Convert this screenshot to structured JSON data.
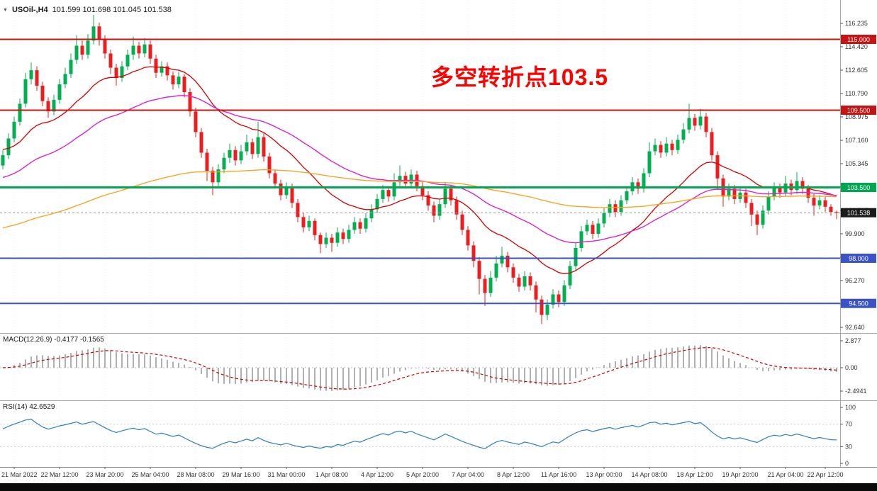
{
  "header": {
    "collapse_icon": "▼",
    "symbol_label": "USOil-,H4",
    "ohlc_text": "101.599 101.698 101.045 101.538"
  },
  "annotation": {
    "text": "多空转折点103.5",
    "color": "#fe0000"
  },
  "indicators": {
    "macd": {
      "label": "MACD(12,26,9) -0.4177 -0.1565",
      "params": [
        12,
        26,
        9
      ],
      "current_values": [
        -0.4177,
        -0.1565
      ],
      "axis_labels": [
        "2.877",
        "0.00",
        "-2.4941"
      ],
      "axis_values": [
        2.877,
        0,
        -2.4941
      ]
    },
    "rsi": {
      "label": "RSI(14) 42.6529",
      "period": 14,
      "current_value": 42.6529,
      "axis_labels": [
        "100",
        "70",
        "30",
        "0"
      ],
      "axis_values": [
        100,
        70,
        30,
        0
      ],
      "levels": [
        70,
        30
      ]
    }
  },
  "chart_data": {
    "type": "candlestick",
    "symbol": "USOil-",
    "timeframe": "H4",
    "title": "多空转折点103.5",
    "ohlc_current": {
      "open": 101.599,
      "high": 101.698,
      "low": 101.045,
      "close": 101.538
    },
    "ylim": [
      92.2,
      118.05
    ],
    "macd_ylim": [
      -3.48,
      3.71
    ],
    "y_axis_labels": [
      "116.235",
      "114.420",
      "112.605",
      "110.790",
      "108.975",
      "107.160",
      "105.345",
      "103.530",
      "101.715",
      "99.900",
      "98.085",
      "96.270",
      "94.455",
      "92.640"
    ],
    "time_labels": [
      "21 Mar 2022",
      "22 Mar 12:00",
      "23 Mar 20:00",
      "25 Mar 04:00",
      "28 Mar 08:00",
      "29 Mar 16:00",
      "31 Mar 00:00",
      "1 Apr 08:00",
      "4 Apr 12:00",
      "5 Apr 20:00",
      "7 Apr 04:00",
      "8 Apr 12:00",
      "11 Apr 16:00",
      "13 Apr 00:00",
      "14 Apr 08:00",
      "18 Apr 12:00",
      "19 Apr 20:00",
      "21 Apr 04:00",
      "22 Apr 12:00"
    ],
    "time_label_indices": [
      2,
      10,
      18,
      26,
      34,
      42,
      50,
      58,
      66,
      74,
      82,
      90,
      98,
      106,
      114,
      122,
      130,
      138,
      145
    ],
    "h_lines": [
      {
        "price": 115.0,
        "label": "115.000",
        "color": "#c41414",
        "width": 2
      },
      {
        "price": 109.5,
        "label": "109.500",
        "color": "#c41414",
        "width": 2
      },
      {
        "price": 103.5,
        "label": "103.500",
        "color": "#00a651",
        "width": 3
      },
      {
        "price": 98.0,
        "label": "98.000",
        "color": "#3a52c4",
        "width": 2
      },
      {
        "price": 94.5,
        "label": "94.500",
        "color": "#3a52c4",
        "width": 2
      }
    ],
    "current_price": {
      "value": 101.538,
      "label": "101.538",
      "box_color": "#1a1a1a"
    },
    "moving_averages": [
      {
        "name": "fast-ma",
        "period": 20,
        "seed": 106.5,
        "color": "#d40000",
        "width": 1.3
      },
      {
        "name": "mid-ma",
        "period": 45,
        "seed": 104.2,
        "color": "#dd22cc",
        "width": 1.4
      },
      {
        "name": "slow-ma",
        "period": 150,
        "seed": 100.3,
        "color": "#f5a623",
        "width": 1.4
      }
    ],
    "colors": {
      "bull": "#00b050",
      "bear": "#ee1c1c",
      "background": "#ffffff",
      "grid": "#efefef",
      "macd_histogram": "#a8a8a8",
      "macd_signal": "#cc0000",
      "rsi_line": "#2e7fbe"
    },
    "candle_format": [
      "open",
      "high",
      "low",
      "close"
    ],
    "candles": [
      [
        105.2,
        106.4,
        104.9,
        106.0
      ],
      [
        106.0,
        107.7,
        105.7,
        107.3
      ],
      [
        107.3,
        109.0,
        107.0,
        108.6
      ],
      [
        108.6,
        110.4,
        108.3,
        110.0
      ],
      [
        110.0,
        112.4,
        109.7,
        111.9
      ],
      [
        111.9,
        113.2,
        111.5,
        112.6
      ],
      [
        112.6,
        112.9,
        111.0,
        111.4
      ],
      [
        111.4,
        111.7,
        109.8,
        110.2
      ],
      [
        110.2,
        110.5,
        108.9,
        109.4
      ],
      [
        109.4,
        110.7,
        109.1,
        110.3
      ],
      [
        110.3,
        111.9,
        110.0,
        111.5
      ],
      [
        111.5,
        112.8,
        111.2,
        112.3
      ],
      [
        112.3,
        113.9,
        112.0,
        113.4
      ],
      [
        113.4,
        115.3,
        113.1,
        114.5
      ],
      [
        114.5,
        114.9,
        113.4,
        113.8
      ],
      [
        113.8,
        115.4,
        113.5,
        114.9
      ],
      [
        114.9,
        116.9,
        114.6,
        116.0
      ],
      [
        116.0,
        116.3,
        114.5,
        115.0
      ],
      [
        115.0,
        115.3,
        113.5,
        113.9
      ],
      [
        113.9,
        114.2,
        112.3,
        112.8
      ],
      [
        112.8,
        113.1,
        111.4,
        112.0
      ],
      [
        112.0,
        113.3,
        111.7,
        112.9
      ],
      [
        112.9,
        114.2,
        112.6,
        113.8
      ],
      [
        113.8,
        115.2,
        113.4,
        114.5
      ],
      [
        114.5,
        114.8,
        113.5,
        113.9
      ],
      [
        113.9,
        115.1,
        113.6,
        114.6
      ],
      [
        114.6,
        114.9,
        113.1,
        113.5
      ],
      [
        113.5,
        113.8,
        112.0,
        112.4
      ],
      [
        112.4,
        113.3,
        112.1,
        112.9
      ],
      [
        112.9,
        113.2,
        111.8,
        112.2
      ],
      [
        112.2,
        112.5,
        111.1,
        111.5
      ],
      [
        111.5,
        112.5,
        111.2,
        112.1
      ],
      [
        112.1,
        112.3,
        110.5,
        110.9
      ],
      [
        110.9,
        111.2,
        109.0,
        109.4
      ],
      [
        109.4,
        109.7,
        107.4,
        107.8
      ],
      [
        107.8,
        108.1,
        105.8,
        106.2
      ],
      [
        106.2,
        106.5,
        104.0,
        104.8
      ],
      [
        104.8,
        105.1,
        102.9,
        103.9
      ],
      [
        103.9,
        105.3,
        103.6,
        104.9
      ],
      [
        104.9,
        106.2,
        104.6,
        105.8
      ],
      [
        105.8,
        106.9,
        105.4,
        106.4
      ],
      [
        106.4,
        106.7,
        105.2,
        105.6
      ],
      [
        105.6,
        106.8,
        105.3,
        106.3
      ],
      [
        106.3,
        107.6,
        106.0,
        107.0
      ],
      [
        107.0,
        107.3,
        105.7,
        106.1
      ],
      [
        106.1,
        108.6,
        105.8,
        107.4
      ],
      [
        107.4,
        107.7,
        105.5,
        105.9
      ],
      [
        105.9,
        106.2,
        104.2,
        104.6
      ],
      [
        104.6,
        104.9,
        103.4,
        103.8
      ],
      [
        103.8,
        104.1,
        102.5,
        102.9
      ],
      [
        102.9,
        103.9,
        102.6,
        103.5
      ],
      [
        103.5,
        103.8,
        101.9,
        102.3
      ],
      [
        102.3,
        102.6,
        100.8,
        101.2
      ],
      [
        101.2,
        101.5,
        100.0,
        100.4
      ],
      [
        100.4,
        101.3,
        100.1,
        100.9
      ],
      [
        100.9,
        101.1,
        99.4,
        99.8
      ],
      [
        99.8,
        100.0,
        98.4,
        99.1
      ],
      [
        99.1,
        100.0,
        98.8,
        99.6
      ],
      [
        99.6,
        99.9,
        98.5,
        99.2
      ],
      [
        99.2,
        100.4,
        98.9,
        100.0
      ],
      [
        100.0,
        100.3,
        99.1,
        99.5
      ],
      [
        99.5,
        100.6,
        99.2,
        100.2
      ],
      [
        100.2,
        101.2,
        99.9,
        100.8
      ],
      [
        100.8,
        101.1,
        99.9,
        100.3
      ],
      [
        100.3,
        101.5,
        100.0,
        101.1
      ],
      [
        101.1,
        102.2,
        100.8,
        101.8
      ],
      [
        101.8,
        103.0,
        101.5,
        102.6
      ],
      [
        102.6,
        103.7,
        102.3,
        103.3
      ],
      [
        103.3,
        103.6,
        102.4,
        102.8
      ],
      [
        102.8,
        104.6,
        102.5,
        103.9
      ],
      [
        103.9,
        105.2,
        103.6,
        104.4
      ],
      [
        104.4,
        104.7,
        103.4,
        103.8
      ],
      [
        103.8,
        104.9,
        103.5,
        104.5
      ],
      [
        104.5,
        104.8,
        103.2,
        103.6
      ],
      [
        103.6,
        103.9,
        102.5,
        102.9
      ],
      [
        102.9,
        103.2,
        101.7,
        102.1
      ],
      [
        102.1,
        102.4,
        100.8,
        101.3
      ],
      [
        101.3,
        102.6,
        101.0,
        102.2
      ],
      [
        102.2,
        103.9,
        101.9,
        103.4
      ],
      [
        103.4,
        103.7,
        102.1,
        102.5
      ],
      [
        102.5,
        102.8,
        101.0,
        101.4
      ],
      [
        101.4,
        101.7,
        99.8,
        100.2
      ],
      [
        100.2,
        100.5,
        98.6,
        99.0
      ],
      [
        99.0,
        99.3,
        97.3,
        97.8
      ],
      [
        97.8,
        98.1,
        95.2,
        96.4
      ],
      [
        96.4,
        96.7,
        94.3,
        95.3
      ],
      [
        95.3,
        97.0,
        95.0,
        96.5
      ],
      [
        96.5,
        98.2,
        96.2,
        97.6
      ],
      [
        97.6,
        98.9,
        97.3,
        98.2
      ],
      [
        98.2,
        98.5,
        96.9,
        97.3
      ],
      [
        97.3,
        97.6,
        96.1,
        96.5
      ],
      [
        96.5,
        96.8,
        95.4,
        95.8
      ],
      [
        95.8,
        97.0,
        95.5,
        96.6
      ],
      [
        96.6,
        96.9,
        95.5,
        95.9
      ],
      [
        95.9,
        96.2,
        93.8,
        94.8
      ],
      [
        94.8,
        95.1,
        92.9,
        93.6
      ],
      [
        93.6,
        94.8,
        93.2,
        94.4
      ],
      [
        94.4,
        95.6,
        94.1,
        95.2
      ],
      [
        95.2,
        95.5,
        94.2,
        94.6
      ],
      [
        94.6,
        96.3,
        94.3,
        95.9
      ],
      [
        95.9,
        97.8,
        95.6,
        97.4
      ],
      [
        97.4,
        99.2,
        97.1,
        98.8
      ],
      [
        98.8,
        100.5,
        98.5,
        100.1
      ],
      [
        100.1,
        101.0,
        99.8,
        100.6
      ],
      [
        100.6,
        100.9,
        99.5,
        99.9
      ],
      [
        99.9,
        101.1,
        99.6,
        100.7
      ],
      [
        100.7,
        101.9,
        100.4,
        101.5
      ],
      [
        101.5,
        102.6,
        101.2,
        102.2
      ],
      [
        102.2,
        102.5,
        101.2,
        101.6
      ],
      [
        101.6,
        102.9,
        101.3,
        102.5
      ],
      [
        102.5,
        103.6,
        102.2,
        103.2
      ],
      [
        103.2,
        104.3,
        102.9,
        103.9
      ],
      [
        103.9,
        104.2,
        103.0,
        103.4
      ],
      [
        103.4,
        105.0,
        103.1,
        104.6
      ],
      [
        104.6,
        107.0,
        104.3,
        106.3
      ],
      [
        106.3,
        107.3,
        106.0,
        106.8
      ],
      [
        106.8,
        107.1,
        105.8,
        106.2
      ],
      [
        106.2,
        107.4,
        105.9,
        106.9
      ],
      [
        106.9,
        107.2,
        106.0,
        106.4
      ],
      [
        106.4,
        107.6,
        106.1,
        107.2
      ],
      [
        107.2,
        108.5,
        106.9,
        108.0
      ],
      [
        108.0,
        110.0,
        107.7,
        108.9
      ],
      [
        108.9,
        109.2,
        107.9,
        108.3
      ],
      [
        108.3,
        109.6,
        108.0,
        109.0
      ],
      [
        109.0,
        109.3,
        107.4,
        107.8
      ],
      [
        107.8,
        108.1,
        105.6,
        106.0
      ],
      [
        106.0,
        106.3,
        103.3,
        104.2
      ],
      [
        104.2,
        104.5,
        102.0,
        102.8
      ],
      [
        102.8,
        103.8,
        102.5,
        103.4
      ],
      [
        103.4,
        103.7,
        102.2,
        102.6
      ],
      [
        102.6,
        103.5,
        102.3,
        103.1
      ],
      [
        103.1,
        103.4,
        101.9,
        102.3
      ],
      [
        102.3,
        102.6,
        100.5,
        101.4
      ],
      [
        101.4,
        101.7,
        99.8,
        100.6
      ],
      [
        100.6,
        102.1,
        100.3,
        101.7
      ],
      [
        101.7,
        103.2,
        101.4,
        102.8
      ],
      [
        102.8,
        103.9,
        102.5,
        103.5
      ],
      [
        103.5,
        103.8,
        102.7,
        103.1
      ],
      [
        103.1,
        104.4,
        102.8,
        103.8
      ],
      [
        103.8,
        104.1,
        102.9,
        103.3
      ],
      [
        103.3,
        104.7,
        103.0,
        104.0
      ],
      [
        104.0,
        104.3,
        103.0,
        103.4
      ],
      [
        103.4,
        103.7,
        102.3,
        102.7
      ],
      [
        102.7,
        103.0,
        101.3,
        102.1
      ],
      [
        102.1,
        102.9,
        101.8,
        102.5
      ],
      [
        102.5,
        102.8,
        101.6,
        102.0
      ],
      [
        102.0,
        102.2,
        101.3,
        101.6
      ],
      [
        101.599,
        101.698,
        101.045,
        101.538
      ]
    ]
  }
}
